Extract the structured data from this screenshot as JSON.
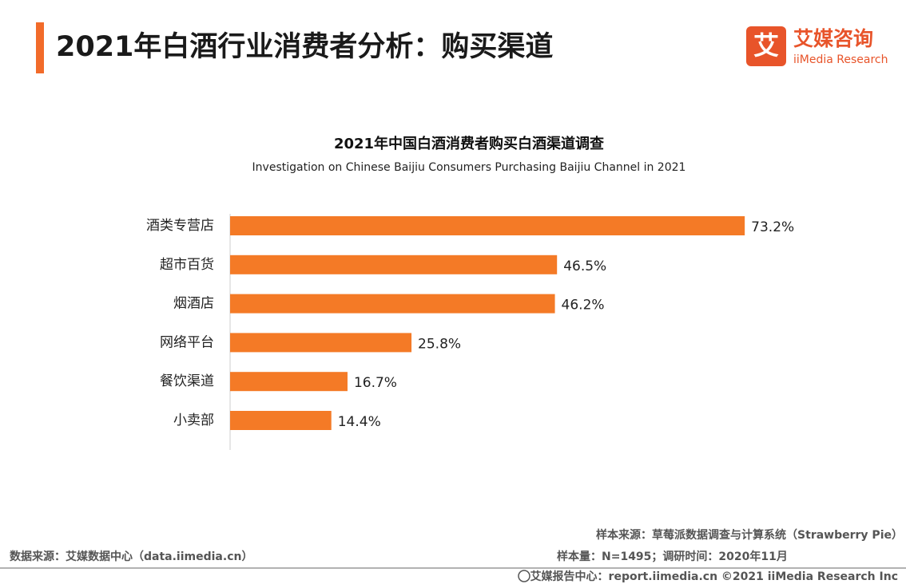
{
  "header": {
    "title": "2021年白酒行业消费者分析：购买渠道",
    "logo_cn": "艾媒咨询",
    "logo_en": "iiMedia Research",
    "logo_icon": "艾"
  },
  "chart_data": {
    "type": "bar",
    "orientation": "horizontal",
    "title": "2021年中国白酒消费者购买白酒渠道调查",
    "subtitle": "Investigation on Chinese Baijiu Consumers Purchasing Baijiu Channel in 2021",
    "categories": [
      "酒类专营店",
      "超市百货",
      "烟酒店",
      "网络平台",
      "餐饮渠道",
      "小卖部"
    ],
    "values": [
      73.2,
      46.5,
      46.2,
      25.8,
      16.7,
      14.4
    ],
    "value_labels": [
      "73.2%",
      "46.5%",
      "46.2%",
      "25.8%",
      "16.7%",
      "14.4%"
    ],
    "color": "#f47a26"
  },
  "footer": {
    "sample_source": "样本来源：草莓派数据调查与计算系统（Strawberry Pie）",
    "sample_size": "样本量：N=1495；调研时间：2020年11月",
    "data_source": "数据来源：艾媒数据中心（data.iimedia.cn）",
    "report_center": "艾媒报告中心：report.iimedia.cn  ©2021  iiMedia Research  Inc"
  }
}
